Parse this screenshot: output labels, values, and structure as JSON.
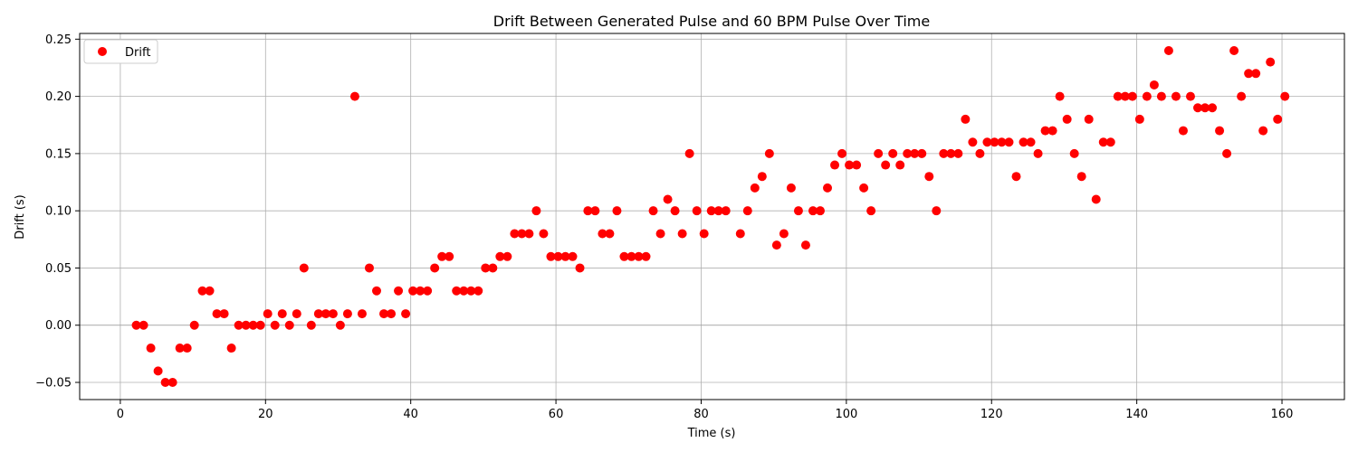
{
  "chart_data": {
    "type": "scatter",
    "title": "Drift Between Generated Pulse and 60 BPM Pulse Over Time",
    "xlabel": "Time (s)",
    "ylabel": "Drift (s)",
    "xlim": [
      -5.6,
      168.6
    ],
    "ylim": [
      -0.065,
      0.255
    ],
    "xticks": [
      0,
      20,
      40,
      60,
      80,
      100,
      120,
      140,
      160
    ],
    "xtick_labels": [
      "0",
      "20",
      "40",
      "60",
      "80",
      "100",
      "120",
      "140",
      "160"
    ],
    "yticks": [
      -0.05,
      0.0,
      0.05,
      0.1,
      0.15,
      0.2,
      0.25
    ],
    "ytick_labels": [
      "−0.05",
      "0.00",
      "0.05",
      "0.10",
      "0.15",
      "0.20",
      "0.25"
    ],
    "grid": true,
    "reference_line_y": 0,
    "legend_position": "upper-left",
    "series": [
      {
        "name": "Drift",
        "color": "#ff0000",
        "points": [
          [
            2.2,
            0.0
          ],
          [
            3.2,
            0.0
          ],
          [
            4.2,
            -0.02
          ],
          [
            5.2,
            -0.04
          ],
          [
            6.2,
            -0.05
          ],
          [
            7.2,
            -0.05
          ],
          [
            8.2,
            -0.02
          ],
          [
            9.2,
            -0.02
          ],
          [
            10.2,
            0.0
          ],
          [
            11.3,
            0.03
          ],
          [
            12.3,
            0.03
          ],
          [
            13.3,
            0.01
          ],
          [
            14.3,
            0.01
          ],
          [
            15.3,
            -0.02
          ],
          [
            16.3,
            0.0
          ],
          [
            17.3,
            0.0
          ],
          [
            18.3,
            0.0
          ],
          [
            19.3,
            0.0
          ],
          [
            20.3,
            0.01
          ],
          [
            21.3,
            0.0
          ],
          [
            22.3,
            0.01
          ],
          [
            23.3,
            0.0
          ],
          [
            24.3,
            0.01
          ],
          [
            25.3,
            0.05
          ],
          [
            26.3,
            0.0
          ],
          [
            27.3,
            0.01
          ],
          [
            28.3,
            0.01
          ],
          [
            29.3,
            0.01
          ],
          [
            30.3,
            0.0
          ],
          [
            31.3,
            0.01
          ],
          [
            32.3,
            0.2
          ],
          [
            33.3,
            0.01
          ],
          [
            34.3,
            0.05
          ],
          [
            35.3,
            0.03
          ],
          [
            36.3,
            0.01
          ],
          [
            37.3,
            0.01
          ],
          [
            38.3,
            0.03
          ],
          [
            39.3,
            0.01
          ],
          [
            40.3,
            0.03
          ],
          [
            41.3,
            0.03
          ],
          [
            42.3,
            0.03
          ],
          [
            43.3,
            0.05
          ],
          [
            44.3,
            0.06
          ],
          [
            45.3,
            0.06
          ],
          [
            46.3,
            0.03
          ],
          [
            47.3,
            0.03
          ],
          [
            48.3,
            0.03
          ],
          [
            49.3,
            0.03
          ],
          [
            50.3,
            0.05
          ],
          [
            51.3,
            0.05
          ],
          [
            52.3,
            0.06
          ],
          [
            53.3,
            0.06
          ],
          [
            54.3,
            0.08
          ],
          [
            55.3,
            0.08
          ],
          [
            56.3,
            0.08
          ],
          [
            57.3,
            0.1
          ],
          [
            58.3,
            0.08
          ],
          [
            59.3,
            0.06
          ],
          [
            60.3,
            0.06
          ],
          [
            61.3,
            0.06
          ],
          [
            62.3,
            0.06
          ],
          [
            63.3,
            0.05
          ],
          [
            64.4,
            0.1
          ],
          [
            65.4,
            0.1
          ],
          [
            66.4,
            0.08
          ],
          [
            67.4,
            0.08
          ],
          [
            68.4,
            0.1
          ],
          [
            69.4,
            0.06
          ],
          [
            70.4,
            0.06
          ],
          [
            71.4,
            0.06
          ],
          [
            72.4,
            0.06
          ],
          [
            73.4,
            0.1
          ],
          [
            74.4,
            0.08
          ],
          [
            75.4,
            0.11
          ],
          [
            76.4,
            0.1
          ],
          [
            77.4,
            0.08
          ],
          [
            78.4,
            0.15
          ],
          [
            79.4,
            0.1
          ],
          [
            80.4,
            0.08
          ],
          [
            81.4,
            0.1
          ],
          [
            82.4,
            0.1
          ],
          [
            83.4,
            0.1
          ],
          [
            85.4,
            0.08
          ],
          [
            86.4,
            0.1
          ],
          [
            87.4,
            0.12
          ],
          [
            88.4,
            0.13
          ],
          [
            89.4,
            0.15
          ],
          [
            90.4,
            0.07
          ],
          [
            91.4,
            0.08
          ],
          [
            92.4,
            0.12
          ],
          [
            93.4,
            0.1
          ],
          [
            94.4,
            0.07
          ],
          [
            95.4,
            0.1
          ],
          [
            96.4,
            0.1
          ],
          [
            97.4,
            0.12
          ],
          [
            98.4,
            0.14
          ],
          [
            99.4,
            0.15
          ],
          [
            100.4,
            0.14
          ],
          [
            101.4,
            0.14
          ],
          [
            102.4,
            0.12
          ],
          [
            103.4,
            0.1
          ],
          [
            104.4,
            0.15
          ],
          [
            105.4,
            0.14
          ],
          [
            106.4,
            0.15
          ],
          [
            107.4,
            0.14
          ],
          [
            108.4,
            0.15
          ],
          [
            109.4,
            0.15
          ],
          [
            110.4,
            0.15
          ],
          [
            111.4,
            0.13
          ],
          [
            112.4,
            0.1
          ],
          [
            113.4,
            0.15
          ],
          [
            114.4,
            0.15
          ],
          [
            115.4,
            0.15
          ],
          [
            116.4,
            0.18
          ],
          [
            117.4,
            0.16
          ],
          [
            118.4,
            0.15
          ],
          [
            119.4,
            0.16
          ],
          [
            120.4,
            0.16
          ],
          [
            121.4,
            0.16
          ],
          [
            122.4,
            0.16
          ],
          [
            123.4,
            0.13
          ],
          [
            124.4,
            0.16
          ],
          [
            125.4,
            0.16
          ],
          [
            126.4,
            0.15
          ],
          [
            127.4,
            0.17
          ],
          [
            128.4,
            0.17
          ],
          [
            129.4,
            0.2
          ],
          [
            130.4,
            0.18
          ],
          [
            131.4,
            0.15
          ],
          [
            132.4,
            0.13
          ],
          [
            133.4,
            0.18
          ],
          [
            134.4,
            0.11
          ],
          [
            135.4,
            0.16
          ],
          [
            136.4,
            0.16
          ],
          [
            137.4,
            0.2
          ],
          [
            138.4,
            0.2
          ],
          [
            139.4,
            0.2
          ],
          [
            140.4,
            0.18
          ],
          [
            141.4,
            0.2
          ],
          [
            142.4,
            0.21
          ],
          [
            143.4,
            0.2
          ],
          [
            144.4,
            0.24
          ],
          [
            145.4,
            0.2
          ],
          [
            146.4,
            0.17
          ],
          [
            147.4,
            0.2
          ],
          [
            148.4,
            0.19
          ],
          [
            149.4,
            0.19
          ],
          [
            150.4,
            0.19
          ],
          [
            151.4,
            0.17
          ],
          [
            152.4,
            0.15
          ],
          [
            153.4,
            0.24
          ],
          [
            154.4,
            0.2
          ],
          [
            155.4,
            0.22
          ],
          [
            156.4,
            0.22
          ],
          [
            157.4,
            0.17
          ],
          [
            158.4,
            0.23
          ],
          [
            159.4,
            0.18
          ],
          [
            160.4,
            0.2
          ]
        ]
      }
    ]
  }
}
